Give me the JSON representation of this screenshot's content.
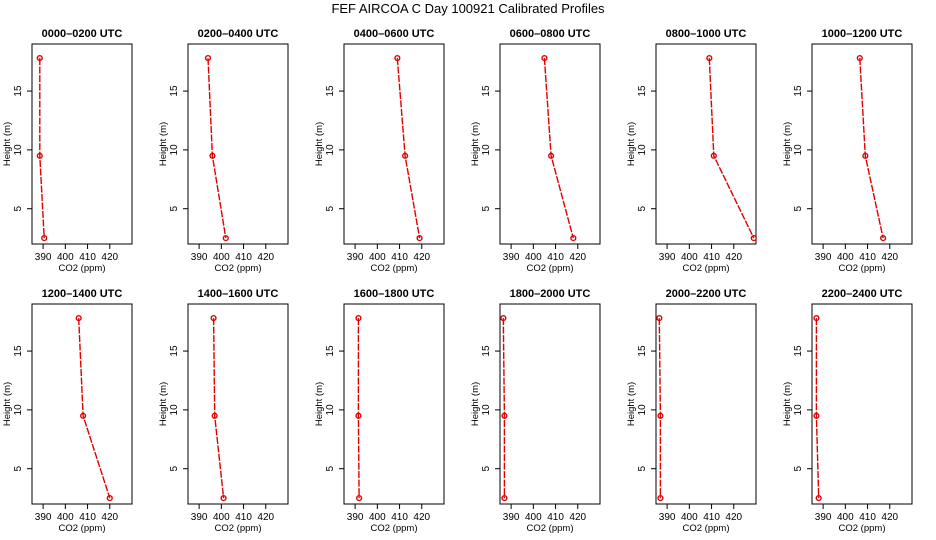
{
  "figure": {
    "title": "FEF AIRCOA C  Day 100921  Calibrated Profiles"
  },
  "colors": {
    "series": "#e00000",
    "axes": "#000000"
  },
  "chart_data": [
    {
      "type": "line",
      "title": "0000–0200 UTC",
      "xlabel": "CO2 (ppm)",
      "ylabel": "Height (m)",
      "xlim": [
        385,
        430
      ],
      "ylim": [
        2,
        19
      ],
      "xticks": [
        390,
        400,
        410,
        420
      ],
      "yticks": [
        5,
        10,
        15
      ],
      "series": [
        {
          "x": [
            388.5,
            388.5,
            390.5
          ],
          "y": [
            17.8,
            9.5,
            2.5
          ]
        }
      ]
    },
    {
      "type": "line",
      "title": "0200–0400 UTC",
      "xlabel": "CO2 (ppm)",
      "ylabel": "Height (m)",
      "xlim": [
        385,
        430
      ],
      "ylim": [
        2,
        19
      ],
      "xticks": [
        390,
        400,
        410,
        420
      ],
      "yticks": [
        5,
        10,
        15
      ],
      "series": [
        {
          "x": [
            394,
            396,
            402
          ],
          "y": [
            17.8,
            9.5,
            2.5
          ]
        }
      ]
    },
    {
      "type": "line",
      "title": "0400–0600 UTC",
      "xlabel": "CO2 (ppm)",
      "ylabel": "Height (m)",
      "xlim": [
        385,
        430
      ],
      "ylim": [
        2,
        19
      ],
      "xticks": [
        390,
        400,
        410,
        420
      ],
      "yticks": [
        5,
        10,
        15
      ],
      "series": [
        {
          "x": [
            409,
            412.5,
            419
          ],
          "y": [
            17.8,
            9.5,
            2.5
          ]
        }
      ]
    },
    {
      "type": "line",
      "title": "0600–0800 UTC",
      "xlabel": "CO2 (ppm)",
      "ylabel": "Height (m)",
      "xlim": [
        385,
        430
      ],
      "ylim": [
        2,
        19
      ],
      "xticks": [
        390,
        400,
        410,
        420
      ],
      "yticks": [
        5,
        10,
        15
      ],
      "series": [
        {
          "x": [
            405,
            408,
            418
          ],
          "y": [
            17.8,
            9.5,
            2.5
          ]
        }
      ]
    },
    {
      "type": "line",
      "title": "0800–1000 UTC",
      "xlabel": "CO2 (ppm)",
      "ylabel": "Height (m)",
      "xlim": [
        385,
        430
      ],
      "ylim": [
        2,
        19
      ],
      "xticks": [
        390,
        400,
        410,
        420
      ],
      "yticks": [
        5,
        10,
        15
      ],
      "series": [
        {
          "x": [
            409,
            411,
            429
          ],
          "y": [
            17.8,
            9.5,
            2.5
          ]
        }
      ]
    },
    {
      "type": "line",
      "title": "1000–1200 UTC",
      "xlabel": "CO2 (ppm)",
      "ylabel": "Height (m)",
      "xlim": [
        385,
        430
      ],
      "ylim": [
        2,
        19
      ],
      "xticks": [
        390,
        400,
        410,
        420
      ],
      "yticks": [
        5,
        10,
        15
      ],
      "series": [
        {
          "x": [
            406.5,
            409,
            417
          ],
          "y": [
            17.8,
            9.5,
            2.5
          ]
        }
      ]
    },
    {
      "type": "line",
      "title": "1200–1400 UTC",
      "xlabel": "CO2 (ppm)",
      "ylabel": "Height (m)",
      "xlim": [
        385,
        430
      ],
      "ylim": [
        2,
        19
      ],
      "xticks": [
        390,
        400,
        410,
        420
      ],
      "yticks": [
        5,
        10,
        15
      ],
      "series": [
        {
          "x": [
            406,
            408,
            420
          ],
          "y": [
            17.8,
            9.5,
            2.5
          ]
        }
      ]
    },
    {
      "type": "line",
      "title": "1400–1600 UTC",
      "xlabel": "CO2 (ppm)",
      "ylabel": "Height (m)",
      "xlim": [
        385,
        430
      ],
      "ylim": [
        2,
        19
      ],
      "xticks": [
        390,
        400,
        410,
        420
      ],
      "yticks": [
        5,
        10,
        15
      ],
      "series": [
        {
          "x": [
            396.5,
            397,
            401
          ],
          "y": [
            17.8,
            9.5,
            2.5
          ]
        }
      ]
    },
    {
      "type": "line",
      "title": "1600–1800 UTC",
      "xlabel": "CO2 (ppm)",
      "ylabel": "Height (m)",
      "xlim": [
        385,
        430
      ],
      "ylim": [
        2,
        19
      ],
      "xticks": [
        390,
        400,
        410,
        420
      ],
      "yticks": [
        5,
        10,
        15
      ],
      "series": [
        {
          "x": [
            391.5,
            391.5,
            391.8
          ],
          "y": [
            17.8,
            9.5,
            2.5
          ]
        }
      ]
    },
    {
      "type": "line",
      "title": "1800–2000 UTC",
      "xlabel": "CO2 (ppm)",
      "ylabel": "Height (m)",
      "xlim": [
        385,
        430
      ],
      "ylim": [
        2,
        19
      ],
      "xticks": [
        390,
        400,
        410,
        420
      ],
      "yticks": [
        5,
        10,
        15
      ],
      "series": [
        {
          "x": [
            386.5,
            387,
            387
          ],
          "y": [
            17.8,
            9.5,
            2.5
          ]
        }
      ]
    },
    {
      "type": "line",
      "title": "2000–2200 UTC",
      "xlabel": "CO2 (ppm)",
      "ylabel": "Height (m)",
      "xlim": [
        385,
        430
      ],
      "ylim": [
        2,
        19
      ],
      "xticks": [
        390,
        400,
        410,
        420
      ],
      "yticks": [
        5,
        10,
        15
      ],
      "series": [
        {
          "x": [
            386.5,
            387,
            387
          ],
          "y": [
            17.8,
            9.5,
            2.5
          ]
        }
      ]
    },
    {
      "type": "line",
      "title": "2200–2400 UTC",
      "xlabel": "CO2 (ppm)",
      "ylabel": "Height (m)",
      "xlim": [
        385,
        430
      ],
      "ylim": [
        2,
        19
      ],
      "xticks": [
        390,
        400,
        410,
        420
      ],
      "yticks": [
        5,
        10,
        15
      ],
      "series": [
        {
          "x": [
            387,
            387,
            388
          ],
          "y": [
            17.8,
            9.5,
            2.5
          ]
        }
      ]
    }
  ]
}
